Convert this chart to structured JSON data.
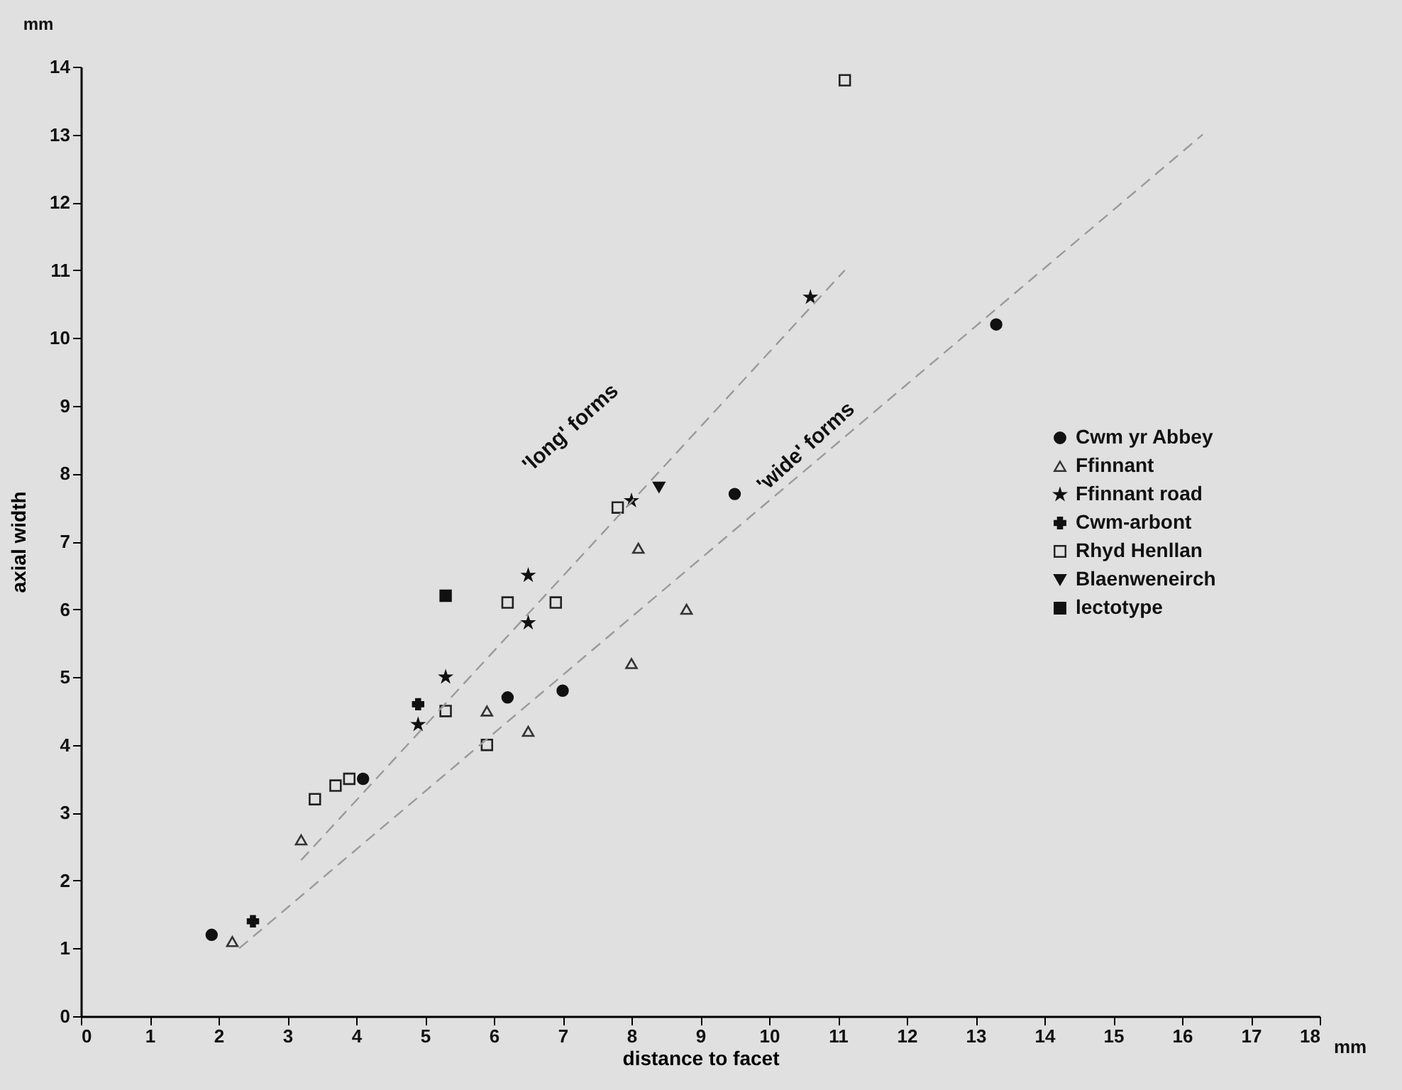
{
  "chart_data": {
    "type": "scatter",
    "xlabel": "distance to facet",
    "ylabel": "axial width",
    "xlim": [
      0,
      18
    ],
    "xticks": [
      0,
      1,
      2,
      3,
      4,
      5,
      6,
      7,
      8,
      9,
      10,
      11,
      12,
      13,
      14,
      15,
      16,
      17,
      18
    ],
    "ylim": [
      0,
      14
    ],
    "yticks": [
      0,
      1,
      2,
      3,
      4,
      5,
      6,
      7,
      8,
      9,
      10,
      11,
      12,
      13,
      14
    ],
    "legend": "right",
    "annotations": [
      "mm",
      "mm",
      "'long' forms",
      "'wide' forms"
    ],
    "series": [
      {
        "name": "Cwm yr Abbey",
        "color": "#111111",
        "marker": "circle",
        "x": [
          1.9,
          4.1,
          6.2,
          7.0,
          9.5,
          13.3
        ],
        "values": [
          1.2,
          3.5,
          4.7,
          4.8,
          7.7,
          10.2
        ]
      },
      {
        "name": "Ffinnant",
        "color": "#333333",
        "marker": "triangle",
        "x": [
          2.2,
          3.2,
          5.9,
          6.5,
          8.0,
          8.1,
          8.8
        ],
        "values": [
          1.1,
          2.6,
          4.5,
          4.2,
          5.2,
          6.9,
          6.0
        ]
      },
      {
        "name": "Ffinnant road",
        "color": "#111111",
        "marker": "star",
        "x": [
          4.9,
          5.3,
          6.5,
          6.5,
          8.0,
          10.6
        ],
        "values": [
          4.3,
          5.0,
          6.5,
          5.8,
          7.6,
          10.6
        ]
      },
      {
        "name": "Cwm-arbont",
        "color": "#111111",
        "marker": "cross",
        "x": [
          2.5,
          4.9
        ],
        "values": [
          1.4,
          4.6
        ]
      },
      {
        "name": "Rhyd Henllan",
        "color": "#222222",
        "marker": "square",
        "x": [
          3.4,
          3.7,
          3.9,
          5.3,
          5.9,
          6.2,
          6.9,
          7.8,
          11.1
        ],
        "values": [
          3.2,
          3.4,
          3.5,
          4.5,
          4.0,
          6.1,
          6.1,
          7.5,
          13.8
        ]
      },
      {
        "name": "Blaenweneirch",
        "color": "#111111",
        "marker": "triangle-down",
        "x": [
          8.4
        ],
        "values": [
          7.8
        ]
      },
      {
        "name": "lectotype",
        "color": "#111111",
        "marker": "square",
        "x": [
          5.3
        ],
        "values": [
          6.2
        ]
      },
      {
        "type": "line",
        "color": "#9a9a9a",
        "line_style": "dashed",
        "x": [
          3.2,
          11.1
        ],
        "values": [
          2.3,
          11.0
        ]
      },
      {
        "type": "line",
        "color": "#9a9a9a",
        "line_style": "dashed",
        "x": [
          2.3,
          16.3
        ],
        "values": [
          1.0,
          13.0
        ]
      }
    ]
  }
}
